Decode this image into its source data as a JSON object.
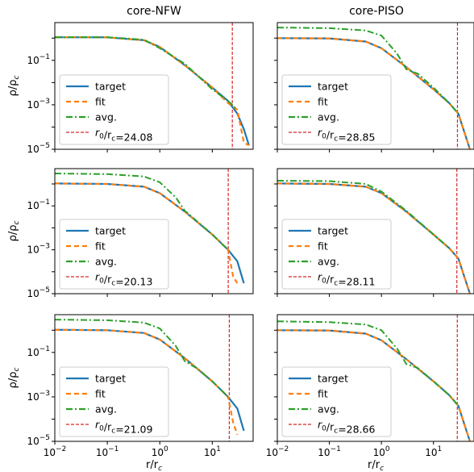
{
  "colors": {
    "target": "#1f77b4",
    "fit": "#ff7f0e",
    "avg": "#2ca02c",
    "r0": "#d62728"
  },
  "labels": {
    "ylabel": "ρ/ρ_c",
    "xlabel": "r/r_c",
    "col_titles": [
      "core-NFW",
      "core-PISO"
    ]
  },
  "chart_data": [
    {
      "type": "line",
      "title": "core-NFW",
      "row": 0,
      "col": 0,
      "xscale": "log",
      "yscale": "log",
      "xlim": [
        0.01,
        60
      ],
      "ylim": [
        1e-05,
        5
      ],
      "legend": "lower-left",
      "series": [
        {
          "name": "target",
          "style": "solid",
          "x": [
            0.01,
            0.1,
            0.5,
            1,
            3,
            10,
            20,
            30,
            40,
            50
          ],
          "values": [
            1.1,
            1.08,
            0.8,
            0.4,
            0.06,
            0.006,
            0.0015,
            0.0004,
            8e-05,
            1.5e-05
          ]
        },
        {
          "name": "fit",
          "style": "dashed",
          "x": [
            0.01,
            0.1,
            0.5,
            1,
            3,
            10,
            20,
            30,
            40,
            50
          ],
          "values": [
            1.1,
            1.08,
            0.8,
            0.4,
            0.06,
            0.006,
            0.0012,
            0.0006,
            2e-05,
            1.5e-05
          ]
        },
        {
          "name": "avg.",
          "style": "dashdot",
          "x": [
            0.01,
            0.1,
            0.5,
            1,
            3,
            10,
            20,
            30
          ],
          "values": [
            1.1,
            1.1,
            0.85,
            0.35,
            0.07,
            0.005,
            0.0015,
            0.0006
          ]
        }
      ],
      "vline": {
        "label": "r_0/r_c=24.08",
        "x": 24.08
      }
    },
    {
      "type": "line",
      "title": "core-PISO",
      "row": 0,
      "col": 1,
      "xscale": "log",
      "yscale": "log",
      "xlim": [
        0.01,
        60
      ],
      "ylim": [
        1e-05,
        5
      ],
      "legend": "lower-left",
      "series": [
        {
          "name": "target",
          "style": "solid",
          "x": [
            0.01,
            0.1,
            0.5,
            1,
            3,
            10,
            20,
            30,
            50
          ],
          "values": [
            1.0,
            0.97,
            0.7,
            0.35,
            0.05,
            0.005,
            0.0012,
            0.0004,
            1e-05
          ]
        },
        {
          "name": "fit",
          "style": "dashed",
          "x": [
            0.01,
            0.1,
            0.5,
            1,
            3,
            10,
            20,
            30,
            50
          ],
          "values": [
            1.0,
            0.97,
            0.7,
            0.35,
            0.05,
            0.005,
            0.0012,
            0.0004,
            1e-05
          ]
        },
        {
          "name": "avg.",
          "style": "dashdot",
          "x": [
            0.01,
            0.1,
            0.5,
            1,
            2,
            3,
            5,
            10,
            20,
            30
          ],
          "values": [
            3.0,
            2.8,
            2.2,
            1.3,
            0.2,
            0.04,
            0.025,
            0.006,
            0.0012,
            0.0004
          ]
        }
      ],
      "vline": {
        "label": "r_0/r_c=28.85",
        "x": 28.85
      }
    },
    {
      "type": "line",
      "title": "",
      "row": 1,
      "col": 0,
      "xscale": "log",
      "yscale": "log",
      "xlim": [
        0.01,
        60
      ],
      "ylim": [
        1e-05,
        5
      ],
      "legend": "lower-left",
      "series": [
        {
          "name": "target",
          "style": "solid",
          "x": [
            0.01,
            0.1,
            0.5,
            1,
            3,
            10,
            20,
            30,
            40
          ],
          "values": [
            1.05,
            1.0,
            0.75,
            0.38,
            0.055,
            0.005,
            0.001,
            0.0003,
            3e-05
          ]
        },
        {
          "name": "fit",
          "style": "dashed",
          "x": [
            0.01,
            0.1,
            0.5,
            1,
            3,
            10,
            20,
            25,
            30
          ],
          "values": [
            1.05,
            1.0,
            0.75,
            0.38,
            0.055,
            0.005,
            0.001,
            6e-05,
            3e-05
          ]
        },
        {
          "name": "avg.",
          "style": "dashdot",
          "x": [
            0.01,
            0.1,
            0.5,
            1,
            2,
            3,
            10,
            20
          ],
          "values": [
            3.0,
            2.8,
            2.2,
            1.2,
            0.25,
            0.06,
            0.005,
            0.001
          ]
        }
      ],
      "vline": {
        "label": "r_0/r_c=20.13",
        "x": 20.13
      }
    },
    {
      "type": "line",
      "title": "",
      "row": 1,
      "col": 1,
      "xscale": "log",
      "yscale": "log",
      "xlim": [
        0.01,
        60
      ],
      "ylim": [
        1e-05,
        5
      ],
      "legend": "lower-left",
      "series": [
        {
          "name": "target",
          "style": "solid",
          "x": [
            0.01,
            0.1,
            0.5,
            1,
            3,
            10,
            20,
            30,
            50
          ],
          "values": [
            1.05,
            1.0,
            0.75,
            0.38,
            0.055,
            0.005,
            0.0012,
            0.0004,
            1e-05
          ]
        },
        {
          "name": "fit",
          "style": "dashed",
          "x": [
            0.01,
            0.1,
            0.5,
            1,
            3,
            10,
            20,
            30,
            50
          ],
          "values": [
            1.05,
            1.0,
            0.75,
            0.38,
            0.055,
            0.005,
            0.0012,
            0.0004,
            1e-05
          ]
        },
        {
          "name": "avg.",
          "style": "dashdot",
          "x": [
            0.01,
            0.1,
            0.5,
            1,
            3,
            10,
            20
          ],
          "values": [
            1.4,
            1.35,
            1.0,
            0.45,
            0.06,
            0.005,
            0.0012
          ]
        }
      ],
      "vline": {
        "label": "r_0/r_c=28.11",
        "x": 28.11
      }
    },
    {
      "type": "line",
      "title": "",
      "row": 2,
      "col": 0,
      "xscale": "log",
      "yscale": "log",
      "xlim": [
        0.01,
        60
      ],
      "ylim": [
        1e-05,
        5
      ],
      "legend": "lower-left",
      "series": [
        {
          "name": "target",
          "style": "solid",
          "x": [
            0.01,
            0.1,
            0.5,
            1,
            3,
            10,
            20,
            30,
            40
          ],
          "values": [
            1.05,
            1.0,
            0.75,
            0.38,
            0.055,
            0.005,
            0.001,
            0.0003,
            3e-05
          ]
        },
        {
          "name": "fit",
          "style": "dashed",
          "x": [
            0.01,
            0.1,
            0.5,
            1,
            3,
            10,
            20,
            25,
            30
          ],
          "values": [
            1.05,
            1.0,
            0.75,
            0.38,
            0.055,
            0.005,
            0.001,
            7e-05,
            2e-05
          ]
        },
        {
          "name": "avg.",
          "style": "dashdot",
          "x": [
            0.01,
            0.1,
            0.5,
            1,
            2,
            3,
            5,
            10,
            20
          ],
          "values": [
            3.0,
            2.8,
            2.2,
            1.2,
            0.2,
            0.04,
            0.02,
            0.005,
            0.001
          ]
        }
      ],
      "vline": {
        "label": "r_0/r_c=21.09",
        "x": 21.09
      }
    },
    {
      "type": "line",
      "title": "",
      "row": 2,
      "col": 1,
      "xscale": "log",
      "yscale": "log",
      "xlim": [
        0.01,
        60
      ],
      "ylim": [
        1e-05,
        5
      ],
      "legend": "lower-left",
      "series": [
        {
          "name": "target",
          "style": "solid",
          "x": [
            0.01,
            0.1,
            0.5,
            1,
            3,
            10,
            20,
            30,
            50
          ],
          "values": [
            1.0,
            0.97,
            0.7,
            0.35,
            0.05,
            0.005,
            0.0012,
            0.0004,
            1e-05
          ]
        },
        {
          "name": "fit",
          "style": "dashed",
          "x": [
            0.01,
            0.1,
            0.5,
            1,
            3,
            10,
            20,
            30,
            50
          ],
          "values": [
            1.0,
            0.97,
            0.7,
            0.35,
            0.05,
            0.005,
            0.0012,
            0.0004,
            1e-05
          ]
        },
        {
          "name": "avg.",
          "style": "dashdot",
          "x": [
            0.01,
            0.1,
            0.5,
            1,
            2,
            3,
            5,
            10,
            20,
            30
          ],
          "values": [
            2.5,
            2.3,
            1.8,
            1.0,
            0.15,
            0.03,
            0.02,
            0.005,
            0.0012,
            0.0004
          ]
        }
      ],
      "vline": {
        "label": "r_0/r_c=28.66",
        "x": 28.66
      }
    }
  ]
}
